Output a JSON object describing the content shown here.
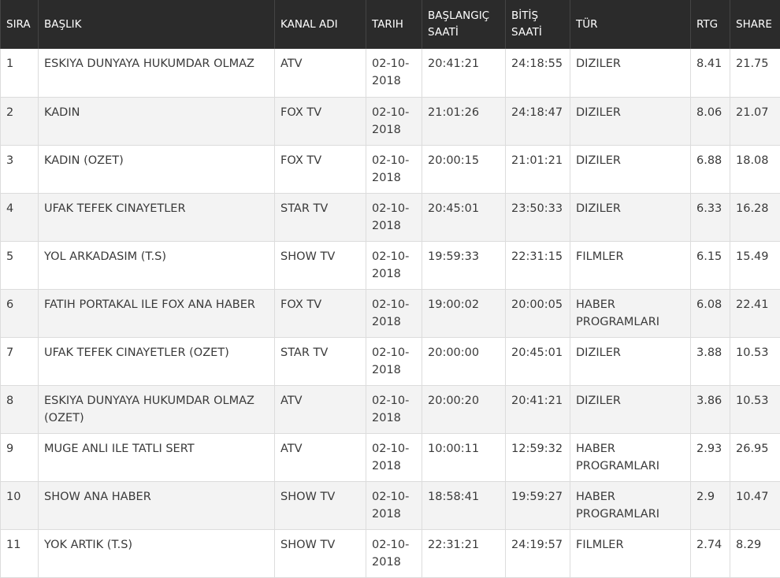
{
  "table": {
    "headers": {
      "sira": "SIRA",
      "baslik": "BAŞLIK",
      "kanal": "KANAL ADI",
      "tarih": "TARIH",
      "baslangic": "BAŞLANGIÇ SAATİ",
      "bitis": "BİTİŞ SAATİ",
      "tur": "TÜR",
      "rtg": "RTG",
      "share": "SHARE"
    },
    "rows": [
      {
        "sira": "1",
        "baslik": "ESKIYA DUNYAYA HUKUMDAR OLMAZ",
        "kanal": "ATV",
        "tarih": "02-10-2018",
        "baslangic": "20:41:21",
        "bitis": "24:18:55",
        "tur": "DIZILER",
        "rtg": "8.41",
        "share": "21.75"
      },
      {
        "sira": "2",
        "baslik": "KADIN",
        "kanal": "FOX TV",
        "tarih": "02-10-2018",
        "baslangic": "21:01:26",
        "bitis": "24:18:47",
        "tur": "DIZILER",
        "rtg": "8.06",
        "share": "21.07"
      },
      {
        "sira": "3",
        "baslik": "KADIN (OZET)",
        "kanal": "FOX TV",
        "tarih": "02-10-2018",
        "baslangic": "20:00:15",
        "bitis": "21:01:21",
        "tur": "DIZILER",
        "rtg": "6.88",
        "share": "18.08"
      },
      {
        "sira": "4",
        "baslik": "UFAK TEFEK CINAYETLER",
        "kanal": "STAR TV",
        "tarih": "02-10-2018",
        "baslangic": "20:45:01",
        "bitis": "23:50:33",
        "tur": "DIZILER",
        "rtg": "6.33",
        "share": "16.28"
      },
      {
        "sira": "5",
        "baslik": "YOL ARKADASIM (T.S)",
        "kanal": "SHOW TV",
        "tarih": "02-10-2018",
        "baslangic": "19:59:33",
        "bitis": "22:31:15",
        "tur": "FILMLER",
        "rtg": "6.15",
        "share": "15.49"
      },
      {
        "sira": "6",
        "baslik": "FATIH PORTAKAL ILE FOX ANA HABER",
        "kanal": "FOX TV",
        "tarih": "02-10-2018",
        "baslangic": "19:00:02",
        "bitis": "20:00:05",
        "tur": "HABER PROGRAMLARI",
        "rtg": "6.08",
        "share": "22.41"
      },
      {
        "sira": "7",
        "baslik": "UFAK TEFEK CINAYETLER (OZET)",
        "kanal": "STAR TV",
        "tarih": "02-10-2018",
        "baslangic": "20:00:00",
        "bitis": "20:45:01",
        "tur": "DIZILER",
        "rtg": "3.88",
        "share": "10.53"
      },
      {
        "sira": "8",
        "baslik": "ESKIYA DUNYAYA HUKUMDAR OLMAZ (OZET)",
        "kanal": "ATV",
        "tarih": "02-10-2018",
        "baslangic": "20:00:20",
        "bitis": "20:41:21",
        "tur": "DIZILER",
        "rtg": "3.86",
        "share": "10.53"
      },
      {
        "sira": "9",
        "baslik": "MUGE ANLI ILE TATLI SERT",
        "kanal": "ATV",
        "tarih": "02-10-2018",
        "baslangic": "10:00:11",
        "bitis": "12:59:32",
        "tur": "HABER PROGRAMLARI",
        "rtg": "2.93",
        "share": "26.95"
      },
      {
        "sira": "10",
        "baslik": "SHOW ANA HABER",
        "kanal": "SHOW TV",
        "tarih": "02-10-2018",
        "baslangic": "18:58:41",
        "bitis": "19:59:27",
        "tur": "HABER PROGRAMLARI",
        "rtg": "2.9",
        "share": "10.47"
      },
      {
        "sira": "11",
        "baslik": "YOK ARTIK (T.S)",
        "kanal": "SHOW TV",
        "tarih": "02-10-2018",
        "baslangic": "22:31:21",
        "bitis": "24:19:57",
        "tur": "FILMLER",
        "rtg": "2.74",
        "share": "8.29"
      }
    ]
  }
}
